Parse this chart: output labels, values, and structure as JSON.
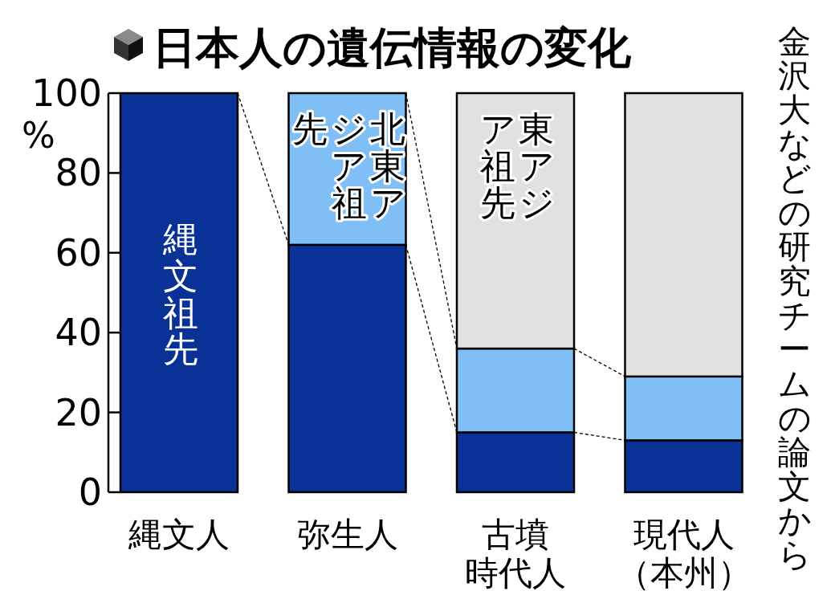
{
  "chart_data": {
    "type": "bar",
    "stacked": true,
    "title": "日本人の遺伝情報の変化",
    "ylabel": "%",
    "categories": [
      "縄文人",
      "弥生人",
      "古墳時代人",
      "現代人（本州）"
    ],
    "series": [
      {
        "name": "縄文祖先",
        "color": "#0a3296",
        "values": [
          100,
          62,
          15,
          13
        ]
      },
      {
        "name": "北東アジア祖先",
        "color": "#80bff5",
        "values": [
          0,
          38,
          21,
          16
        ]
      },
      {
        "name": "東アジア祖先",
        "color": "#e1e1e1",
        "values": [
          0,
          0,
          64,
          71
        ]
      }
    ],
    "ylim": [
      0,
      100
    ],
    "yticks": [
      0,
      20,
      40,
      60,
      80,
      100
    ],
    "annotations": [
      "金沢大などの研究チームの論文から"
    ]
  }
}
